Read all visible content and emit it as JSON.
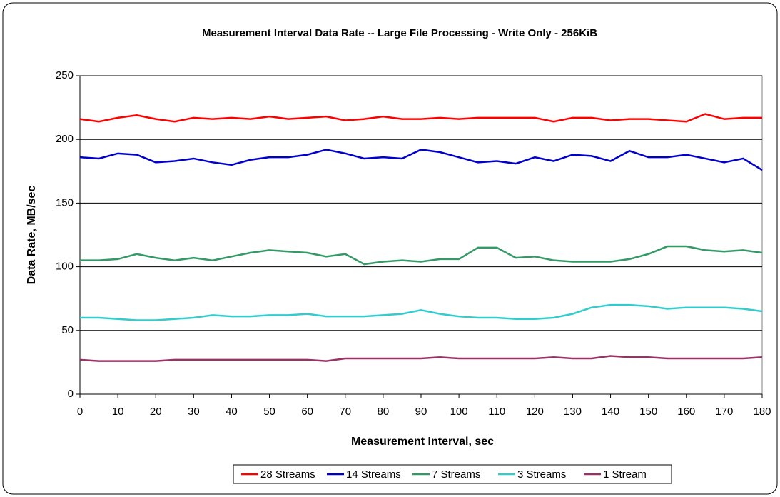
{
  "chart_data": {
    "type": "line",
    "title": "Measurement Interval Data Rate -- Large File Processing - Write Only - 256KiB",
    "x_label": "Measurement Interval, sec",
    "y_label": "Data Rate, MB/sec",
    "x": [
      0,
      5,
      10,
      15,
      20,
      25,
      30,
      35,
      40,
      45,
      50,
      55,
      60,
      65,
      70,
      75,
      80,
      85,
      90,
      95,
      100,
      105,
      110,
      115,
      120,
      125,
      130,
      135,
      140,
      145,
      150,
      155,
      160,
      165,
      170,
      175,
      180
    ],
    "xlim": [
      0,
      180
    ],
    "xticks": [
      0,
      10,
      20,
      30,
      40,
      50,
      60,
      70,
      80,
      90,
      100,
      110,
      120,
      130,
      140,
      150,
      160,
      170,
      180
    ],
    "ylim": [
      0,
      250
    ],
    "yticks": [
      0,
      50,
      100,
      150,
      200,
      250
    ],
    "grid": true,
    "legend": "bottom",
    "series": [
      {
        "name": "28 Streams",
        "color": "#ff0000",
        "values": [
          216,
          214,
          217,
          219,
          216,
          214,
          217,
          216,
          217,
          216,
          218,
          216,
          217,
          218,
          215,
          216,
          218,
          216,
          216,
          217,
          216,
          217,
          217,
          217,
          217,
          214,
          217,
          217,
          215,
          216,
          216,
          215,
          214,
          220,
          216,
          217,
          217
        ]
      },
      {
        "name": "14 Streams",
        "color": "#0000cc",
        "values": [
          186,
          185,
          189,
          188,
          182,
          183,
          185,
          182,
          180,
          184,
          186,
          186,
          188,
          192,
          189,
          185,
          186,
          185,
          192,
          190,
          186,
          182,
          183,
          181,
          186,
          183,
          188,
          187,
          183,
          191,
          186,
          186,
          188,
          185,
          182,
          185,
          176
        ]
      },
      {
        "name": "7 Streams",
        "color": "#339966",
        "values": [
          105,
          105,
          106,
          110,
          107,
          105,
          107,
          105,
          108,
          111,
          113,
          112,
          111,
          108,
          110,
          102,
          104,
          105,
          104,
          106,
          106,
          115,
          115,
          107,
          108,
          105,
          104,
          104,
          104,
          106,
          110,
          116,
          116,
          113,
          112,
          113,
          111
        ]
      },
      {
        "name": "3 Streams",
        "color": "#33cccc",
        "values": [
          60,
          60,
          59,
          58,
          58,
          59,
          60,
          62,
          61,
          61,
          62,
          62,
          63,
          61,
          61,
          61,
          62,
          63,
          66,
          63,
          61,
          60,
          60,
          59,
          59,
          60,
          63,
          68,
          70,
          70,
          69,
          67,
          68,
          68,
          68,
          67,
          65
        ]
      },
      {
        "name": "1 Stream",
        "color": "#993366",
        "values": [
          27,
          26,
          26,
          26,
          26,
          27,
          27,
          27,
          27,
          27,
          27,
          27,
          27,
          26,
          28,
          28,
          28,
          28,
          28,
          29,
          28,
          28,
          28,
          28,
          28,
          29,
          28,
          28,
          30,
          29,
          29,
          28,
          28,
          28,
          28,
          28,
          29
        ]
      }
    ]
  }
}
